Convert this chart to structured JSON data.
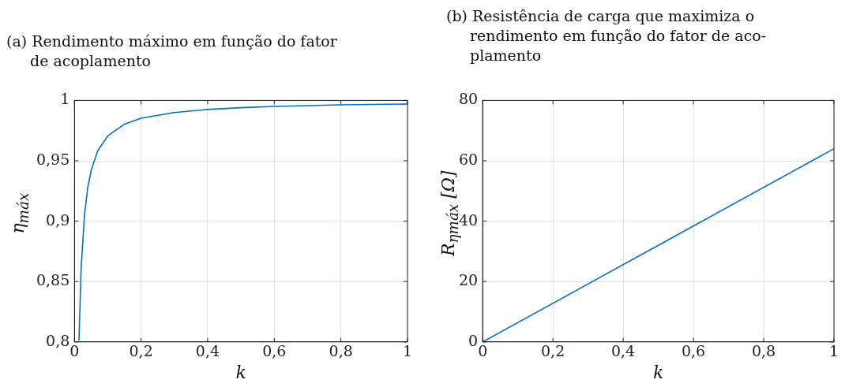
{
  "chart_data": [
    {
      "type": "line",
      "title": "(a) Rendimento máximo em função do fator\nde acoplamento",
      "xlabel": "k",
      "ylabel": "η$_{máx}$",
      "x": [
        0.0135,
        0.02,
        0.03,
        0.04,
        0.05,
        0.07,
        0.1,
        0.15,
        0.2,
        0.3,
        0.4,
        0.5,
        0.6,
        0.8,
        1
      ],
      "series": [
        {
          "color": "#0072bd",
          "values": [
            0.801,
            0.861,
            0.905,
            0.928,
            0.942,
            0.9585,
            0.9706,
            0.9803,
            0.9852,
            0.99,
            0.9925,
            0.994,
            0.995,
            0.9963,
            0.997
          ]
        }
      ],
      "xlim": [
        0,
        1
      ],
      "xticks": [
        {
          "value": 0,
          "label": "0"
        },
        {
          "value": 0.2,
          "label": "0,2"
        },
        {
          "value": 0.4,
          "label": "0,4"
        },
        {
          "value": 0.6,
          "label": "0,6"
        },
        {
          "value": 0.8,
          "label": "0,8"
        },
        {
          "value": 1,
          "label": "1"
        }
      ],
      "ylim": [
        0.8,
        1
      ],
      "yticks": [
        {
          "value": 0.8,
          "label": "0,8"
        },
        {
          "value": 0.85,
          "label": "0,85"
        },
        {
          "value": 0.9,
          "label": "0,9"
        },
        {
          "value": 0.95,
          "label": "0,95"
        },
        {
          "value": 1,
          "label": "1"
        }
      ],
      "grid": true,
      "marker": "none"
    },
    {
      "type": "line",
      "title": "(b) Resistência de carga que maximiza o\nrendimento em função do fator de aco-\nplamento",
      "xlabel": "k",
      "ylabel": "R$_{ηmáx}$ [Ω]",
      "x": [
        0,
        0.5,
        1
      ],
      "series": [
        {
          "color": "#0072bd",
          "values": [
            0,
            32,
            64
          ]
        }
      ],
      "xlim": [
        0,
        1
      ],
      "xticks": [
        {
          "value": 0,
          "label": "0"
        },
        {
          "value": 0.2,
          "label": "0,2"
        },
        {
          "value": 0.4,
          "label": "0,4"
        },
        {
          "value": 0.6,
          "label": "0,6"
        },
        {
          "value": 0.8,
          "label": "0,8"
        },
        {
          "value": 1,
          "label": "1"
        }
      ],
      "ylim": [
        0,
        80
      ],
      "yticks": [
        {
          "value": 0,
          "label": "0"
        },
        20,
        40,
        60,
        {
          "value": 80,
          "label": "80"
        }
      ],
      "grid": true,
      "marker": "none"
    }
  ]
}
